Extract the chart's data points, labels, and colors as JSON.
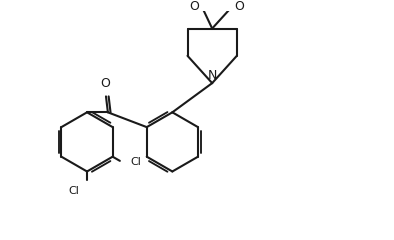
{
  "bg_color": "#ffffff",
  "line_color": "#1a1a1a",
  "line_width": 1.5,
  "figsize": [
    3.94,
    2.4
  ],
  "dpi": 100,
  "xlim": [
    0,
    10
  ],
  "ylim": [
    0,
    6.0
  ]
}
